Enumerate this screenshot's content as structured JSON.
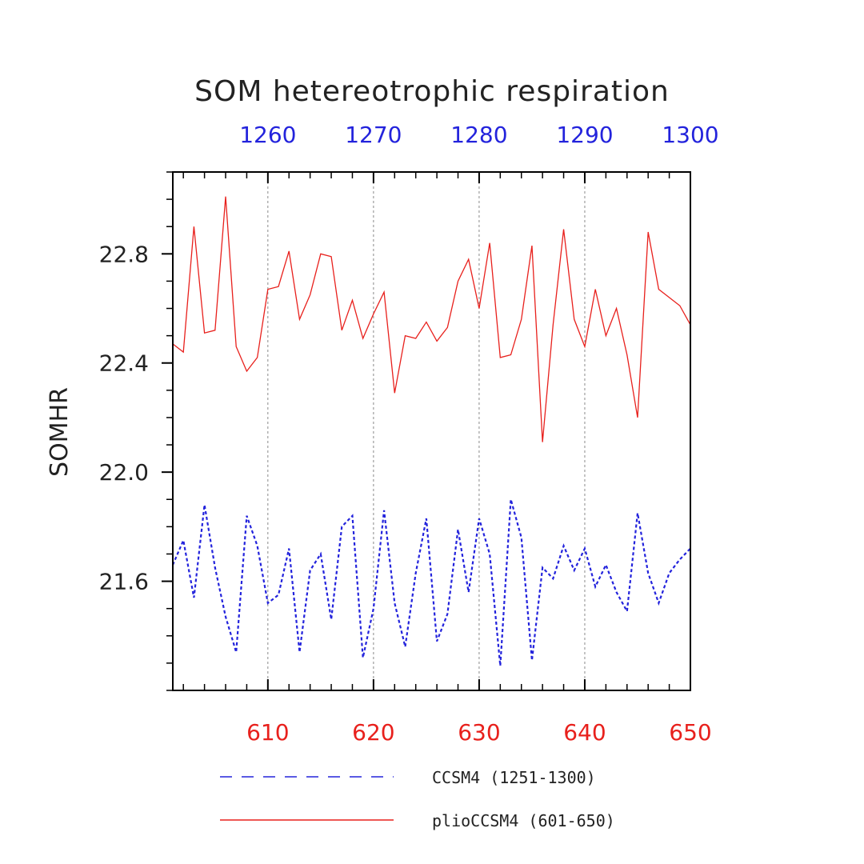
{
  "chart_data": {
    "type": "line",
    "title": "SOM hetereotrophic respiration",
    "ylabel": "SOMHR",
    "xlabel": "",
    "x_bottom": {
      "range": [
        601,
        650
      ],
      "ticks": [
        610,
        620,
        630,
        640,
        650
      ],
      "color": "#e8201c"
    },
    "x_top": {
      "range": [
        1251,
        1300
      ],
      "ticks": [
        1260,
        1270,
        1280,
        1290,
        1300
      ],
      "color": "#2323dc"
    },
    "ylim": [
      21.2,
      23.1
    ],
    "y_ticks": [
      21.6,
      22.0,
      22.4,
      22.8
    ],
    "y_tick_labels": [
      "21.6",
      "22.0",
      "22.4",
      "22.8"
    ],
    "grid": "vertical dashed at major x ticks",
    "legend_position": "bottom",
    "series": [
      {
        "name": "CCSM4 (1251-1300)",
        "axis": "top",
        "color": "#2323dc",
        "style": "dashed",
        "x": [
          1251,
          1252,
          1253,
          1254,
          1255,
          1256,
          1257,
          1258,
          1259,
          1260,
          1261,
          1262,
          1263,
          1264,
          1265,
          1266,
          1267,
          1268,
          1269,
          1270,
          1271,
          1272,
          1273,
          1274,
          1275,
          1276,
          1277,
          1278,
          1279,
          1280,
          1281,
          1282,
          1283,
          1284,
          1285,
          1286,
          1287,
          1288,
          1289,
          1290,
          1291,
          1292,
          1293,
          1294,
          1295,
          1296,
          1297,
          1298,
          1299,
          1300
        ],
        "values": [
          21.66,
          21.75,
          21.54,
          21.88,
          21.65,
          21.47,
          21.34,
          21.84,
          21.73,
          21.52,
          21.55,
          21.72,
          21.34,
          21.64,
          21.7,
          21.46,
          21.8,
          21.84,
          21.32,
          21.5,
          21.86,
          21.52,
          21.36,
          21.63,
          21.83,
          21.38,
          21.48,
          21.79,
          21.56,
          21.83,
          21.7,
          21.29,
          21.9,
          21.76,
          21.31,
          21.65,
          21.61,
          21.73,
          21.64,
          21.72,
          21.58,
          21.66,
          21.56,
          21.49,
          21.85,
          21.63,
          21.52,
          21.63,
          21.68,
          21.72
        ]
      },
      {
        "name": "plioCCSM4 (601-650)",
        "axis": "bottom",
        "color": "#e8201c",
        "style": "solid",
        "x": [
          601,
          602,
          603,
          604,
          605,
          606,
          607,
          608,
          609,
          610,
          611,
          612,
          613,
          614,
          615,
          616,
          617,
          618,
          619,
          620,
          621,
          622,
          623,
          624,
          625,
          626,
          627,
          628,
          629,
          630,
          631,
          632,
          633,
          634,
          635,
          636,
          637,
          638,
          639,
          640,
          641,
          642,
          643,
          644,
          645,
          646,
          647,
          648,
          649,
          650
        ],
        "values": [
          22.47,
          22.44,
          22.9,
          22.51,
          22.52,
          23.01,
          22.46,
          22.37,
          22.42,
          22.67,
          22.68,
          22.81,
          22.56,
          22.65,
          22.8,
          22.79,
          22.52,
          22.63,
          22.49,
          22.58,
          22.66,
          22.29,
          22.5,
          22.49,
          22.55,
          22.48,
          22.53,
          22.7,
          22.78,
          22.6,
          22.84,
          22.42,
          22.43,
          22.56,
          22.83,
          22.11,
          22.54,
          22.89,
          22.56,
          22.46,
          22.67,
          22.5,
          22.6,
          22.43,
          22.2,
          22.88,
          22.67,
          22.64,
          22.61,
          22.54
        ]
      }
    ]
  }
}
